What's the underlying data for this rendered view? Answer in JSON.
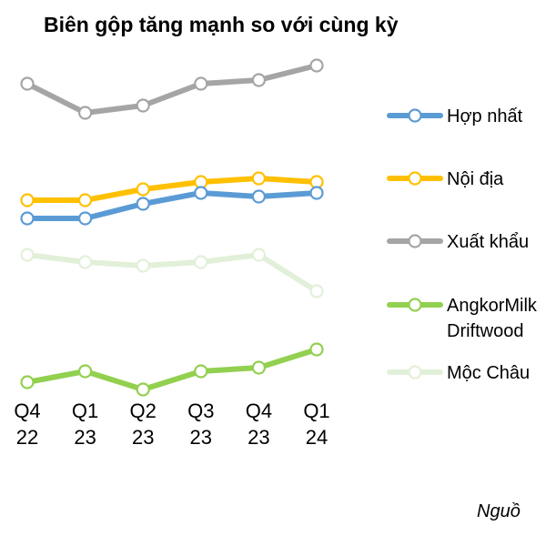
{
  "title": "Biên gộp tăng mạnh so với cùng kỳ",
  "source_label": "Nguồ",
  "chart_data": {
    "type": "line",
    "title": "Biên gộp tăng mạnh so với cùng kỳ",
    "categories": [
      [
        "Q4",
        "22"
      ],
      [
        "Q1",
        "23"
      ],
      [
        "Q2",
        "23"
      ],
      [
        "Q3",
        "23"
      ],
      [
        "Q4",
        "23"
      ],
      [
        "Q1",
        "24"
      ]
    ],
    "xlabel": "",
    "ylabel": "",
    "ylim": [
      0,
      10
    ],
    "grid": false,
    "y_axis_shown": false,
    "legend_position": "right",
    "series": [
      {
        "name": "Hợp nhất",
        "color": "#5b9bd5",
        "values": [
          5.2,
          5.2,
          5.6,
          5.9,
          5.8,
          5.9
        ]
      },
      {
        "name": "Nội địa",
        "color": "#ffc000",
        "values": [
          5.7,
          5.7,
          6.0,
          6.2,
          6.3,
          6.2
        ]
      },
      {
        "name": "Xuất khẩu",
        "color": "#a5a5a5",
        "values": [
          8.9,
          8.1,
          8.3,
          8.9,
          9.0,
          9.4
        ]
      },
      {
        "name": "AngkorMilk Driftwood",
        "label_lines": [
          "AngkorMilk",
          "Driftwood"
        ],
        "color": "#92d050",
        "values": [
          0.7,
          1.0,
          0.5,
          1.0,
          1.1,
          1.6
        ]
      },
      {
        "name": "Mộc Châu",
        "color": "#e2f0d9",
        "values": [
          4.2,
          4.0,
          3.9,
          4.0,
          4.2,
          3.2
        ]
      }
    ]
  }
}
